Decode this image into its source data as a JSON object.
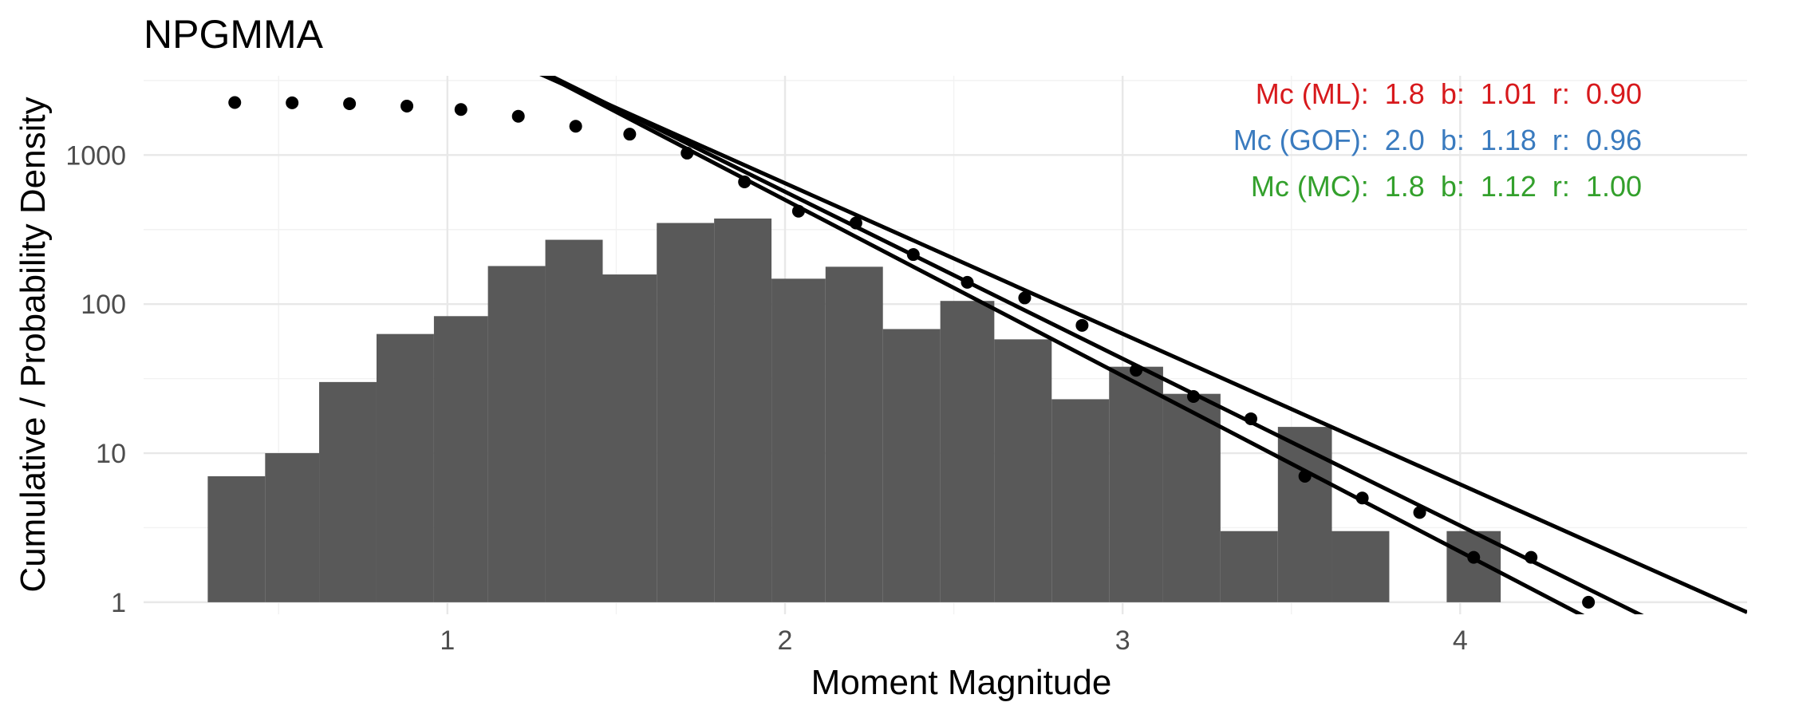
{
  "chart_data": {
    "type": "bar",
    "title": "NPGMMA",
    "xlabel": "Moment Magnitude",
    "ylabel": "Cumulative / Probability Density",
    "y_scale": "log10",
    "xlim": [
      0.1,
      4.85
    ],
    "ylim": [
      0.83,
      3400
    ],
    "x_ticks": [
      1,
      2,
      3,
      4
    ],
    "x_tick_labels": [
      "1",
      "2",
      "3",
      "4"
    ],
    "y_ticks": [
      1,
      10,
      100,
      1000
    ],
    "y_tick_labels": [
      "1",
      "10",
      "100",
      "1000"
    ],
    "grid": true,
    "legend": "none",
    "histogram": {
      "bin_width": 0.1667,
      "bins": [
        {
          "x0": 0.29,
          "x1": 0.46,
          "count": 7
        },
        {
          "x0": 0.46,
          "x1": 0.62,
          "count": 10
        },
        {
          "x0": 0.62,
          "x1": 0.79,
          "count": 30
        },
        {
          "x0": 0.79,
          "x1": 0.96,
          "count": 63
        },
        {
          "x0": 0.96,
          "x1": 1.12,
          "count": 83
        },
        {
          "x0": 1.12,
          "x1": 1.29,
          "count": 180
        },
        {
          "x0": 1.29,
          "x1": 1.46,
          "count": 270
        },
        {
          "x0": 1.46,
          "x1": 1.62,
          "count": 158
        },
        {
          "x0": 1.62,
          "x1": 1.79,
          "count": 350
        },
        {
          "x0": 1.79,
          "x1": 1.96,
          "count": 375
        },
        {
          "x0": 1.96,
          "x1": 2.12,
          "count": 148
        },
        {
          "x0": 2.12,
          "x1": 2.29,
          "count": 178
        },
        {
          "x0": 2.29,
          "x1": 2.46,
          "count": 68
        },
        {
          "x0": 2.46,
          "x1": 2.62,
          "count": 105
        },
        {
          "x0": 2.62,
          "x1": 2.79,
          "count": 58
        },
        {
          "x0": 2.79,
          "x1": 2.96,
          "count": 23
        },
        {
          "x0": 2.96,
          "x1": 3.12,
          "count": 38
        },
        {
          "x0": 3.12,
          "x1": 3.29,
          "count": 25
        },
        {
          "x0": 3.29,
          "x1": 3.46,
          "count": 3
        },
        {
          "x0": 3.46,
          "x1": 3.62,
          "count": 15
        },
        {
          "x0": 3.62,
          "x1": 3.79,
          "count": 3
        },
        {
          "x0": 3.79,
          "x1": 3.96,
          "count": 0
        },
        {
          "x0": 3.96,
          "x1": 4.12,
          "count": 3
        }
      ]
    },
    "cumulative_points": {
      "x": [
        0.37,
        0.54,
        0.71,
        0.88,
        1.04,
        1.21,
        1.38,
        1.54,
        1.71,
        1.88,
        2.04,
        2.21,
        2.38,
        2.54,
        2.71,
        2.88,
        3.04,
        3.21,
        3.38,
        3.54,
        3.71,
        3.88,
        4.04,
        4.21,
        4.38
      ],
      "y": [
        2250,
        2240,
        2210,
        2130,
        2020,
        1820,
        1560,
        1380,
        1030,
        660,
        420,
        350,
        215,
        140,
        110,
        72,
        36,
        24,
        17,
        7,
        5,
        4,
        2,
        2,
        1
      ]
    },
    "fit_lines": [
      {
        "mc": 1.8,
        "b": 1.01,
        "n_at_mc": 1030
      },
      {
        "mc": 2.0,
        "b": 1.18,
        "n_at_mc": 500
      },
      {
        "mc": 1.8,
        "b": 1.12,
        "n_at_mc": 950
      }
    ],
    "annotations": [
      {
        "text": "Mc (ML):  1.8  b:  1.01  r:  0.90",
        "color": "#d7191c"
      },
      {
        "text": "Mc (GOF):  2.0  b:  1.18  r:  0.96",
        "color": "#3a7bbf"
      },
      {
        "text": "Mc (MC):  1.8  b:  1.12  r:  1.00",
        "color": "#33a02c"
      }
    ]
  }
}
